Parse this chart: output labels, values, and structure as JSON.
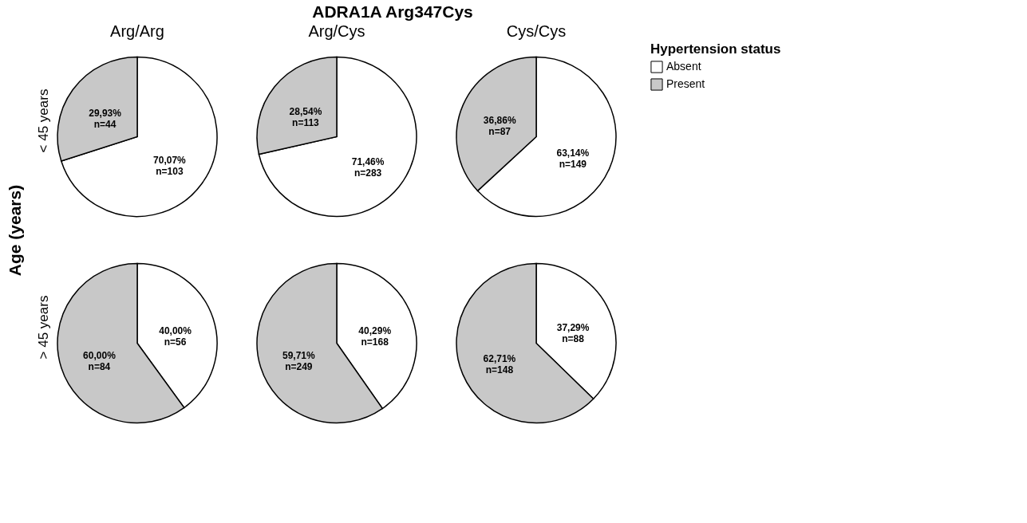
{
  "chart_data": [
    {
      "type": "pie",
      "title": "Arg/Arg",
      "ylabel": "< 45 years",
      "annotations": [
        "ADRA1A Arg347Cys",
        "Age (years)"
      ],
      "legend": "right",
      "legend_title": "Hypertension status",
      "categories": [
        "Absent",
        "Present"
      ],
      "values": [
        103,
        44
      ],
      "colors": [
        "#ffffff",
        "#c8c8c8"
      ],
      "value_labels": [
        "70,07%\nn=103",
        "29,93%\nn=44"
      ]
    },
    {
      "type": "pie",
      "title": "Arg/Cys",
      "categories": [
        null,
        null
      ],
      "values": [
        283,
        113
      ],
      "colors": [
        "#ffffff",
        "#c8c8c8"
      ],
      "value_labels": [
        "71,46%\nn=283",
        "28,54%\nn=113"
      ]
    },
    {
      "type": "pie",
      "title": "Cys/Cys",
      "categories": [
        null,
        null
      ],
      "values": [
        149,
        87
      ],
      "colors": [
        "#ffffff",
        "#c8c8c8"
      ],
      "value_labels": [
        "63,14%\nn=149",
        "36,86%\nn=87"
      ]
    },
    {
      "type": "pie",
      "ylabel": "> 45 years",
      "categories": [
        null,
        null
      ],
      "values": [
        56,
        84
      ],
      "colors": [
        "#ffffff",
        "#c8c8c8"
      ],
      "value_labels": [
        "40,00%\nn=56",
        "60,00%\nn=84"
      ]
    },
    {
      "type": "pie",
      "categories": [
        null,
        null
      ],
      "values": [
        168,
        249
      ],
      "colors": [
        "#ffffff",
        "#c8c8c8"
      ],
      "value_labels": [
        "40,29%\nn=168",
        "59,71%\nn=249"
      ]
    },
    {
      "type": "pie",
      "categories": [
        null,
        null
      ],
      "values": [
        88,
        148
      ],
      "colors": [
        "#ffffff",
        "#c8c8c8"
      ],
      "value_labels": [
        "37,29%\nn=88",
        "62,71%\nn=148"
      ]
    }
  ]
}
